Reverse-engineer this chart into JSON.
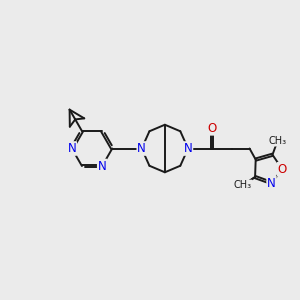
{
  "bg_color": "#ebebeb",
  "bond_color": "#1a1a1a",
  "N_color": "#0000ee",
  "O_color": "#cc0000",
  "font_size_atom": 8.5,
  "line_width": 1.4,
  "figsize": [
    3.0,
    3.0
  ],
  "dpi": 100,
  "xlim": [
    0,
    10
  ],
  "ylim": [
    3.5,
    9.0
  ]
}
